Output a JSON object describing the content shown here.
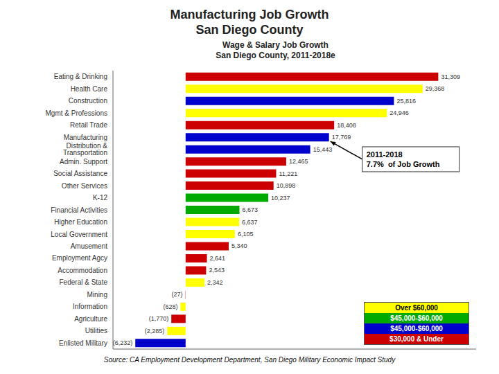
{
  "chart_data": {
    "type": "bar",
    "orientation": "horizontal",
    "title": "Manufacturing Job Growth\nSan Diego County",
    "subtitle": "Wage & Salary Job Growth\nSan Diego County, 2011-2018e",
    "source": "Source:  CA Employment Development Department, San Diego Military Economic Impact Study",
    "categories": [
      "Eating & Drinking",
      "Health Care",
      "Construction",
      "Mgmt & Professions",
      "Retail Trade",
      "Manufacturing",
      "Distribution & Transportation",
      "Admin. Support",
      "Social Assistance",
      "Other Services",
      "K-12",
      "Financial Activities",
      "Higher Education",
      "Local Government",
      "Amusement",
      "Employment Agcy",
      "Accommodation",
      "Federal & State",
      "Mining",
      "Information",
      "Agriculture",
      "Utilities",
      "Enlisted Military"
    ],
    "values": [
      31309,
      29368,
      25816,
      24946,
      18408,
      17769,
      15443,
      12465,
      11221,
      10898,
      10237,
      6673,
      6637,
      6105,
      5340,
      2641,
      2543,
      2342,
      -27,
      -628,
      -1770,
      -2285,
      -6232
    ],
    "value_labels": [
      "31,309",
      "29,368",
      "25,816",
      "24,946",
      "18,408",
      "17,769",
      "15,443",
      "12,465",
      "11,221",
      "10,898",
      "10,237",
      "6,673",
      "6,637",
      "6,105",
      "5,340",
      "2,641",
      "2,543",
      "2,342",
      "(27)",
      "(628)",
      "(1,770)",
      "(2,285)",
      "(6,232)"
    ],
    "data_labels": true,
    "colors": [
      "#CC0000",
      "#FFFF00",
      "#0000CC",
      "#FFFF00",
      "#CC0000",
      "#0000CC",
      "#0000CC",
      "#CC0000",
      "#CC0000",
      "#CC0000",
      "#00AA00",
      "#00AA00",
      "#FFFF00",
      "#FFFF00",
      "#CC0000",
      "#CC0000",
      "#CC0000",
      "#FFFF00",
      "#CC0000",
      "#FFFF00",
      "#CC0000",
      "#FFFF00",
      "#0000CC"
    ],
    "legend": "lower right",
    "legend_entries": [
      {
        "name": "Over $60,000",
        "color": "#FFFF00"
      },
      {
        "name": "$45,000-$60,000",
        "color": "#00AA00"
      },
      {
        "name": "$45,000-$60,000",
        "color": "#0000CC"
      },
      {
        "name": "$30,000 & Under",
        "color": "#CC0000"
      }
    ],
    "annotations": [
      {
        "text": "2011-2018\n7.7%  of Job Growth",
        "category": "Manufacturing"
      }
    ],
    "xlim": [
      -9000,
      36000
    ],
    "tick_labels": "y",
    "grid": false
  }
}
